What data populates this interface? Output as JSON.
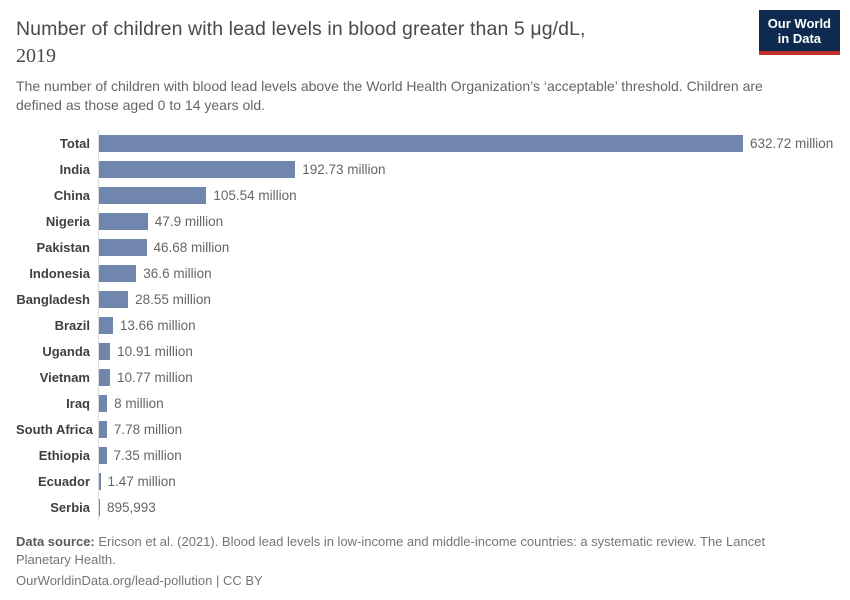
{
  "header": {
    "title": "Number of children with lead levels in blood greater than 5 μg/dL,",
    "title_year": "2019",
    "subtitle": "The number of children with blood lead levels above the World Health Organization’s ‘acceptable’ threshold. Children are defined as those aged 0 to 14 years old."
  },
  "logo": {
    "line1": "Our World",
    "line2": "in Data"
  },
  "chart_data": {
    "type": "bar",
    "orientation": "horizontal",
    "title": "Number of children with lead levels in blood greater than 5 μg/dL, 2019",
    "categories": [
      "Total",
      "India",
      "China",
      "Nigeria",
      "Pakistan",
      "Indonesia",
      "Bangladesh",
      "Brazil",
      "Uganda",
      "Vietnam",
      "Iraq",
      "South Africa",
      "Ethiopia",
      "Ecuador",
      "Serbia"
    ],
    "values": [
      632.72,
      192.73,
      105.54,
      47.9,
      46.68,
      36.6,
      28.55,
      13.66,
      10.91,
      10.77,
      8,
      7.78,
      7.35,
      1.47,
      0.895993
    ],
    "value_labels": [
      "632.72 million",
      "192.73 million",
      "105.54 million",
      "47.9 million",
      "46.68 million",
      "36.6 million",
      "28.55 million",
      "13.66 million",
      "10.91 million",
      "10.77 million",
      "8 million",
      "7.78 million",
      "7.35 million",
      "1.47 million",
      "895,993"
    ],
    "unit": "million children",
    "xlim": [
      0,
      632.72
    ],
    "grid": false,
    "legend": "none",
    "bar_color": "#7186ac"
  },
  "colors": {
    "bar": "#7186ac",
    "logo_bg": "#0e2a4e",
    "logo_accent": "#c0302c",
    "axis_line": "#dcdcdc"
  },
  "footer": {
    "source_label": "Data source:",
    "source_text": "Ericson et al. (2021). Blood lead levels in low-income and middle-income countries: a systematic review. The Lancet Planetary Health.",
    "url": "OurWorldinData.org/lead-pollution",
    "separator": "|",
    "license": "CC BY"
  }
}
